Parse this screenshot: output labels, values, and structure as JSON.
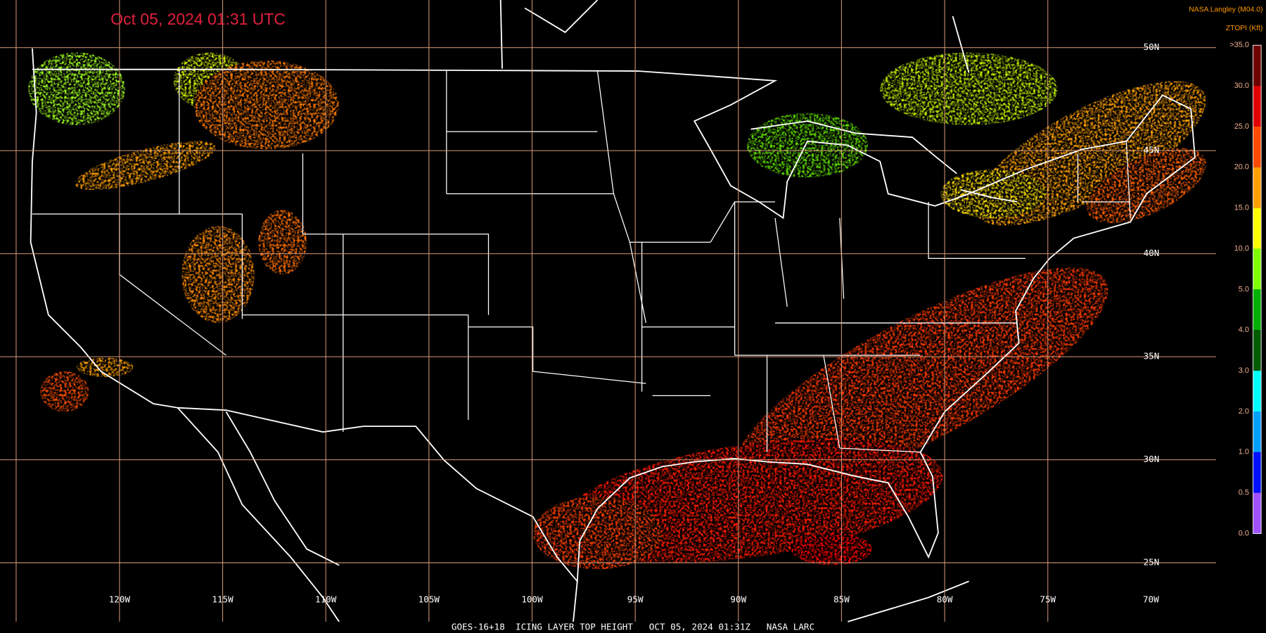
{
  "header": {
    "timestamp": "Oct 05, 2024 01:31 UTC",
    "source": "NASA Langley (M04.0)",
    "product": "ZTOPI (Kft)"
  },
  "legend": [
    {
      "label": ">35.0",
      "color": "#6e0000"
    },
    {
      "label": "30.0",
      "color": "#e00000"
    },
    {
      "label": "25.0",
      "color": "#ff4a00"
    },
    {
      "label": "20.0",
      "color": "#ffa000"
    },
    {
      "label": "15.0",
      "color": "#ffff00"
    },
    {
      "label": "10.0",
      "color": "#80ff00"
    },
    {
      "label": "5.0",
      "color": "#00b000"
    },
    {
      "label": "4.0",
      "color": "#005a00"
    },
    {
      "label": "3.0",
      "color": "#00ffff"
    },
    {
      "label": "2.0",
      "color": "#00a0ff"
    },
    {
      "label": "1.0",
      "color": "#0010ff"
    },
    {
      "label": "0.5",
      "color": "#a050ff"
    },
    {
      "label": "0.0",
      "color": null
    }
  ],
  "latitude_labels": [
    "50N",
    "45N",
    "40N",
    "35N",
    "30N",
    "25N"
  ],
  "longitude_labels": [
    "120W",
    "115W",
    "110W",
    "105W",
    "100W",
    "95W",
    "90W",
    "85W",
    "80W",
    "75W",
    "70W"
  ],
  "footer": "GOES-16+18  ICING LAYER TOP HEIGHT   OCT 05, 2024 01:31Z   NASA LARC"
}
